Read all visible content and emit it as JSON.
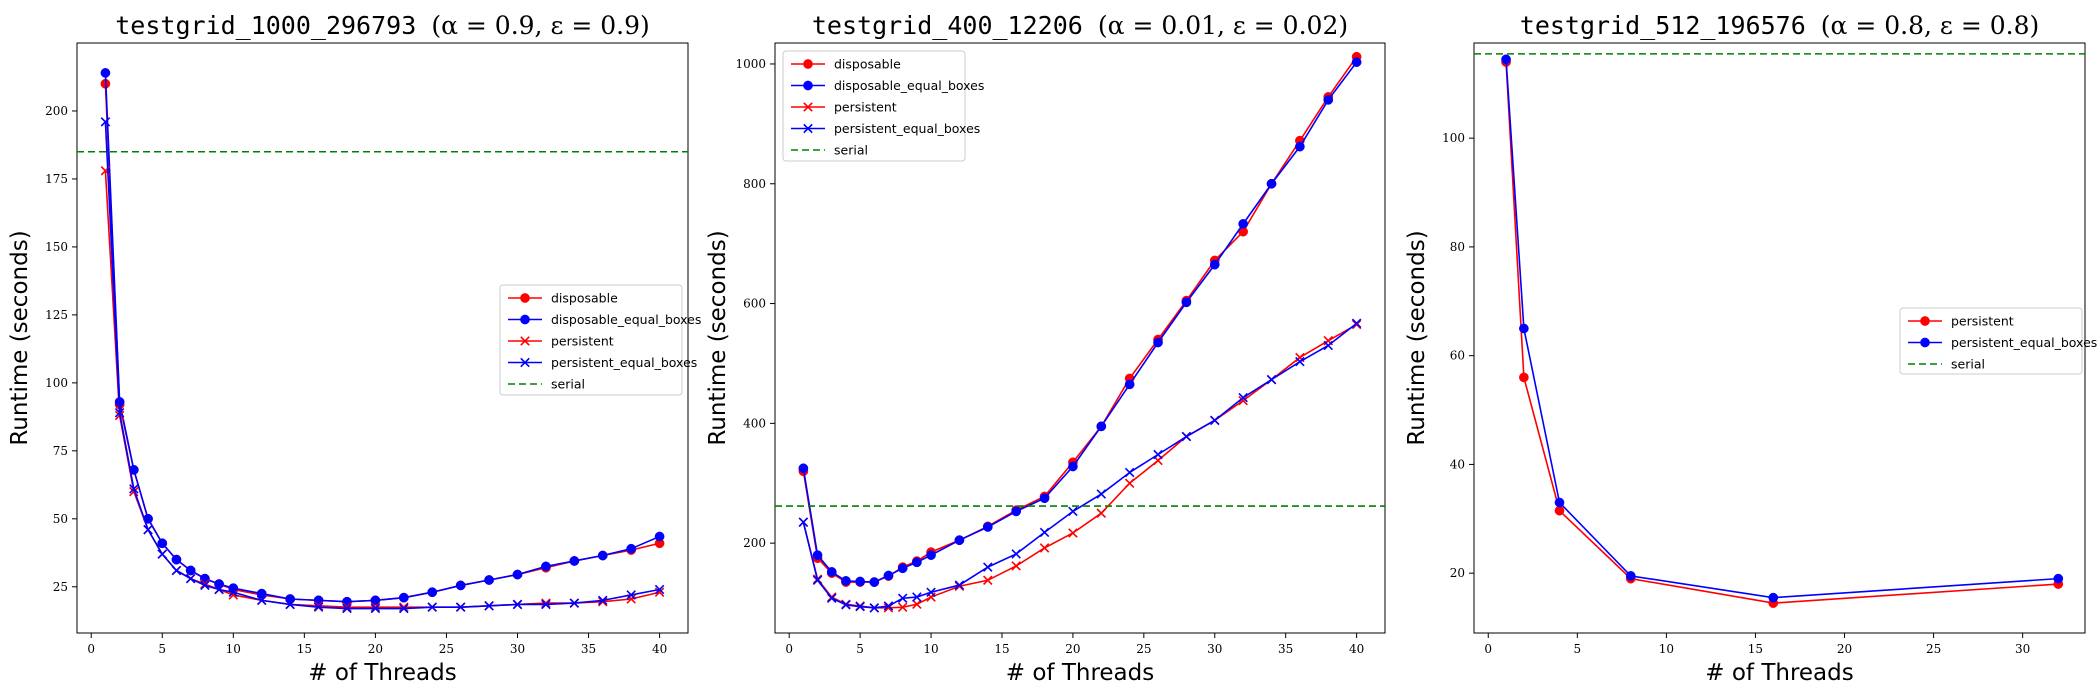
{
  "chart_data": [
    {
      "type": "line",
      "title": "testgrid_1000_296793",
      "title_params": "(α = 0.9, ε = 0.9)",
      "xlabel": "# of Threads",
      "ylabel": "Runtime (seconds)",
      "xlim": [
        -1,
        42
      ],
      "ylim": [
        8,
        225
      ],
      "xticks": [
        0,
        5,
        10,
        15,
        20,
        25,
        30,
        35,
        40
      ],
      "yticks": [
        25,
        50,
        75,
        100,
        125,
        150,
        175,
        200
      ],
      "grid": false,
      "legend_position": "center-right",
      "series": [
        {
          "name": "disposable",
          "color": "#ff0000",
          "marker": "circle",
          "x": [
            1,
            2,
            3,
            4,
            5,
            6,
            7,
            8,
            9,
            10,
            12,
            14,
            16,
            18,
            20,
            22,
            24,
            26,
            28,
            30,
            32,
            34,
            36,
            38,
            40
          ],
          "y": [
            210,
            92,
            68,
            50,
            41,
            35,
            31,
            28,
            26,
            24,
            22,
            20.5,
            20,
            19.5,
            20,
            21,
            23,
            25.5,
            27.5,
            29.5,
            32,
            34.5,
            36.5,
            38.5,
            41
          ]
        },
        {
          "name": "disposable_equal_boxes",
          "color": "#0000ff",
          "marker": "circle",
          "x": [
            1,
            2,
            3,
            4,
            5,
            6,
            7,
            8,
            9,
            10,
            12,
            14,
            16,
            18,
            20,
            22,
            24,
            26,
            28,
            30,
            32,
            34,
            36,
            38,
            40
          ],
          "y": [
            214,
            93,
            68,
            50,
            41,
            35,
            31,
            28,
            26,
            24.5,
            22.5,
            20.5,
            20,
            19.5,
            20,
            21,
            23,
            25.5,
            27.5,
            29.5,
            32.5,
            34.5,
            36.5,
            39,
            43.5
          ]
        },
        {
          "name": "persistent",
          "color": "#ff0000",
          "marker": "x",
          "x": [
            1,
            2,
            3,
            4,
            5,
            6,
            7,
            8,
            9,
            10,
            12,
            14,
            16,
            18,
            20,
            22,
            24,
            26,
            28,
            30,
            32,
            34,
            36,
            38,
            40
          ],
          "y": [
            178,
            88,
            60,
            46,
            37,
            31,
            28,
            26,
            24,
            22,
            20,
            18.5,
            18,
            17.5,
            17.5,
            17.5,
            17.5,
            17.5,
            18,
            18.5,
            19,
            19,
            19.5,
            20.5,
            23
          ]
        },
        {
          "name": "persistent_equal_boxes",
          "color": "#0000ff",
          "marker": "x",
          "x": [
            1,
            2,
            3,
            4,
            5,
            6,
            7,
            8,
            9,
            10,
            12,
            14,
            16,
            18,
            20,
            22,
            24,
            26,
            28,
            30,
            32,
            34,
            36,
            38,
            40
          ],
          "y": [
            196,
            89,
            61,
            46,
            37,
            31,
            28,
            25.5,
            24,
            23,
            20,
            18.5,
            17.5,
            17,
            17,
            17,
            17.5,
            17.5,
            18,
            18.5,
            18.5,
            19,
            20,
            22,
            24
          ]
        },
        {
          "name": "serial",
          "color": "#008000",
          "style": "dashed",
          "horizontal": true,
          "y": 185
        }
      ]
    },
    {
      "type": "line",
      "title": "testgrid_400_12206",
      "title_params": "(α = 0.01, ε = 0.02)",
      "xlabel": "# of Threads",
      "ylabel": "Runtime (seconds)",
      "xlim": [
        -1,
        42
      ],
      "ylim": [
        50,
        1035
      ],
      "xticks": [
        0,
        5,
        10,
        15,
        20,
        25,
        30,
        35,
        40
      ],
      "yticks": [
        200,
        400,
        600,
        800,
        1000
      ],
      "grid": false,
      "legend_position": "top-left",
      "series": [
        {
          "name": "disposable",
          "color": "#ff0000",
          "marker": "circle",
          "x": [
            1,
            2,
            3,
            4,
            5,
            6,
            7,
            8,
            9,
            10,
            12,
            14,
            16,
            18,
            20,
            22,
            24,
            26,
            28,
            30,
            32,
            34,
            36,
            38,
            40
          ],
          "y": [
            320,
            175,
            150,
            135,
            135,
            135,
            145,
            160,
            170,
            185,
            205,
            228,
            255,
            278,
            335,
            395,
            475,
            540,
            605,
            672,
            720,
            800,
            872,
            945,
            1012
          ]
        },
        {
          "name": "disposable_equal_boxes",
          "color": "#0000ff",
          "marker": "circle",
          "x": [
            1,
            2,
            3,
            4,
            5,
            6,
            7,
            8,
            9,
            10,
            12,
            14,
            16,
            18,
            20,
            22,
            24,
            26,
            28,
            30,
            32,
            34,
            36,
            38,
            40
          ],
          "y": [
            325,
            180,
            152,
            137,
            136,
            135,
            146,
            158,
            168,
            180,
            205,
            227,
            253,
            275,
            328,
            395,
            465,
            535,
            602,
            665,
            733,
            800,
            862,
            940,
            1003
          ]
        },
        {
          "name": "persistent",
          "color": "#ff0000",
          "marker": "x",
          "x": [
            1,
            2,
            3,
            4,
            5,
            6,
            7,
            8,
            9,
            10,
            12,
            14,
            16,
            18,
            20,
            22,
            24,
            26,
            28,
            30,
            32,
            34,
            36,
            38,
            40
          ],
          "y": [
            235,
            140,
            110,
            98,
            95,
            92,
            92,
            93,
            98,
            110,
            128,
            138,
            162,
            192,
            217,
            250,
            300,
            338,
            378,
            405,
            438,
            473,
            510,
            538,
            565
          ]
        },
        {
          "name": "persistent_equal_boxes",
          "color": "#0000ff",
          "marker": "x",
          "x": [
            1,
            2,
            3,
            4,
            5,
            6,
            7,
            8,
            9,
            10,
            12,
            14,
            16,
            18,
            20,
            22,
            24,
            26,
            28,
            30,
            32,
            34,
            36,
            38,
            40
          ],
          "y": [
            235,
            138,
            108,
            97,
            94,
            92,
            95,
            108,
            110,
            118,
            130,
            160,
            182,
            218,
            253,
            282,
            318,
            348,
            378,
            405,
            443,
            473,
            503,
            530,
            567
          ]
        },
        {
          "name": "serial",
          "color": "#008000",
          "style": "dashed",
          "horizontal": true,
          "y": 262
        }
      ]
    },
    {
      "type": "line",
      "title": "testgrid_512_196576",
      "title_params": "(α = 0.8, ε = 0.8)",
      "xlabel": "# of Threads",
      "ylabel": "Runtime (seconds)",
      "xlim": [
        -0.8,
        33.5
      ],
      "ylim": [
        9,
        117.5
      ],
      "xticks": [
        0,
        5,
        10,
        15,
        20,
        25,
        30
      ],
      "yticks": [
        20,
        40,
        60,
        80,
        100
      ],
      "grid": false,
      "legend_position": "center-right",
      "series": [
        {
          "name": "persistent",
          "color": "#ff0000",
          "marker": "circle",
          "x": [
            1,
            2,
            4,
            8,
            16,
            32
          ],
          "y": [
            114,
            56,
            31.5,
            19,
            14.5,
            18
          ]
        },
        {
          "name": "persistent_equal_boxes",
          "color": "#0000ff",
          "marker": "circle",
          "x": [
            1,
            2,
            4,
            8,
            16,
            32
          ],
          "y": [
            114.5,
            65,
            33,
            19.5,
            15.5,
            19
          ]
        },
        {
          "name": "serial",
          "color": "#008000",
          "style": "dashed",
          "horizontal": true,
          "y": 115.5
        }
      ]
    }
  ]
}
